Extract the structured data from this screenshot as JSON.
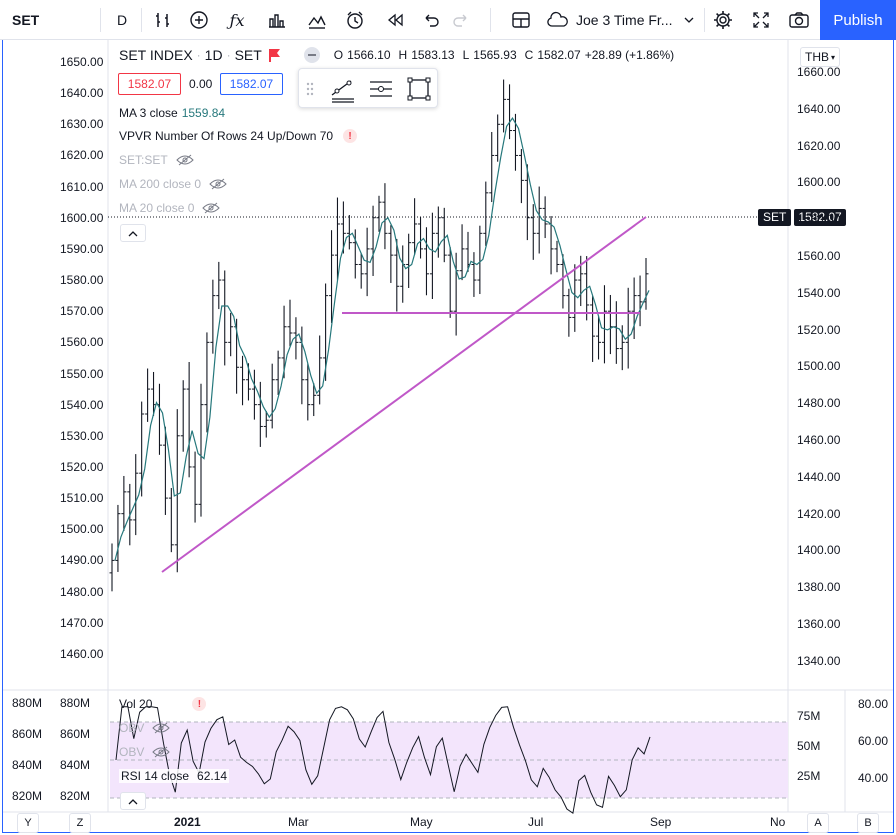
{
  "toolbar": {
    "symbol": "SET",
    "interval": "D",
    "layout_name": "Joe 3 Time Fr...",
    "publish": "Publish"
  },
  "legend": {
    "symbol_name": "SET INDEX",
    "interval": "1D",
    "exchange": "SET",
    "open_label": "O",
    "open": "1566.10",
    "high_label": "H",
    "high": "1583.13",
    "low_label": "L",
    "low": "1565.93",
    "close_label": "C",
    "close": "1582.07",
    "change": "+28.89 (+1.86%)",
    "bid": "1582.07",
    "spread": "0.00",
    "ask": "1582.07"
  },
  "indicators": {
    "ma3_label": "MA 3 close",
    "ma3_value": "1559.84",
    "vpvr": "VPVR Number Of Rows 24 Up/Down 70",
    "setset": "SET:SET",
    "ma200": "MA 200 close 0",
    "ma20": "MA 20 close 0",
    "vol": "Vol 20",
    "obv1": "OBV",
    "obv2": "OBV",
    "rsi_label": "RSI 14 close",
    "rsi_value": "62.14"
  },
  "currency": "THB",
  "price_tag": {
    "label": "SET",
    "value": "1582.07"
  },
  "left_axis": [
    "1650.00",
    "1640.00",
    "1630.00",
    "1620.00",
    "1610.00",
    "1600.00",
    "1590.00",
    "1580.00",
    "1570.00",
    "1560.00",
    "1550.00",
    "1540.00",
    "1530.00",
    "1520.00",
    "1510.00",
    "1500.00",
    "1490.00",
    "1480.00",
    "1470.00",
    "1460.00"
  ],
  "right_axis": [
    "1660.00",
    "1640.00",
    "1620.00",
    "1600.00",
    "1580.00",
    "1560.00",
    "1540.00",
    "1520.00",
    "1500.00",
    "1480.00",
    "1460.00",
    "1440.00",
    "1420.00",
    "1400.00",
    "1380.00",
    "1360.00",
    "1340.00"
  ],
  "outer_vol_axis": [
    "880M",
    "860M",
    "840M",
    "820M"
  ],
  "inner_vol_axis": [
    "880M",
    "860M",
    "840M",
    "820M"
  ],
  "rsi_axis": [
    "80.00",
    "60.00",
    "40.00"
  ],
  "obv_axis": [
    "75M",
    "50M",
    "25M"
  ],
  "time_axis": [
    "2021",
    "Mar",
    "May",
    "Jul",
    "Sep",
    "No"
  ],
  "scale_buttons": [
    "Y",
    "Z",
    "A",
    "B"
  ],
  "colors": {
    "accent": "#2962ff",
    "ma": "#26787c",
    "trend": "#c058c8",
    "rsi": "#131722",
    "rsi_band": "#f3e5fc",
    "red": "#f23645"
  },
  "chart_data": {
    "type": "candlestick",
    "price_range": [
      1455,
      1655
    ],
    "x_labels": [
      "2021",
      "Mar",
      "May",
      "Jul",
      "Sep",
      "No"
    ],
    "series": [
      {
        "name": "SET",
        "close_path": [
          1490,
          1505,
          1512,
          1503,
          1518,
          1537,
          1545,
          1540,
          1527,
          1510,
          1495,
          1530,
          1545,
          1520,
          1508,
          1540,
          1560,
          1575,
          1580,
          1560,
          1565,
          1552,
          1548,
          1545,
          1540,
          1533,
          1535,
          1548,
          1555,
          1565,
          1563,
          1560,
          1548,
          1540,
          1543,
          1555,
          1575,
          1588,
          1598,
          1595,
          1592,
          1585,
          1582,
          1590,
          1600,
          1605,
          1595,
          1588,
          1578,
          1585,
          1592,
          1598,
          1590,
          1582,
          1595,
          1600,
          1588,
          1570,
          1583,
          1590,
          1585,
          1580,
          1595,
          1608,
          1620,
          1630,
          1638,
          1628,
          1620,
          1612,
          1600,
          1595,
          1603,
          1598,
          1590,
          1585,
          1575,
          1568,
          1580,
          1582,
          1572,
          1562,
          1560,
          1570,
          1565,
          1558,
          1560,
          1570,
          1575,
          1573,
          1582
        ]
      },
      {
        "name": "MA 3 close",
        "last": 1559.84
      }
    ],
    "trendline": [
      [
        1488,
        "Jan"
      ],
      [
        1600,
        "Aug"
      ]
    ],
    "horizontal_line": 1570,
    "rsi": {
      "value": 62.14,
      "levels": [
        70,
        30
      ]
    }
  }
}
